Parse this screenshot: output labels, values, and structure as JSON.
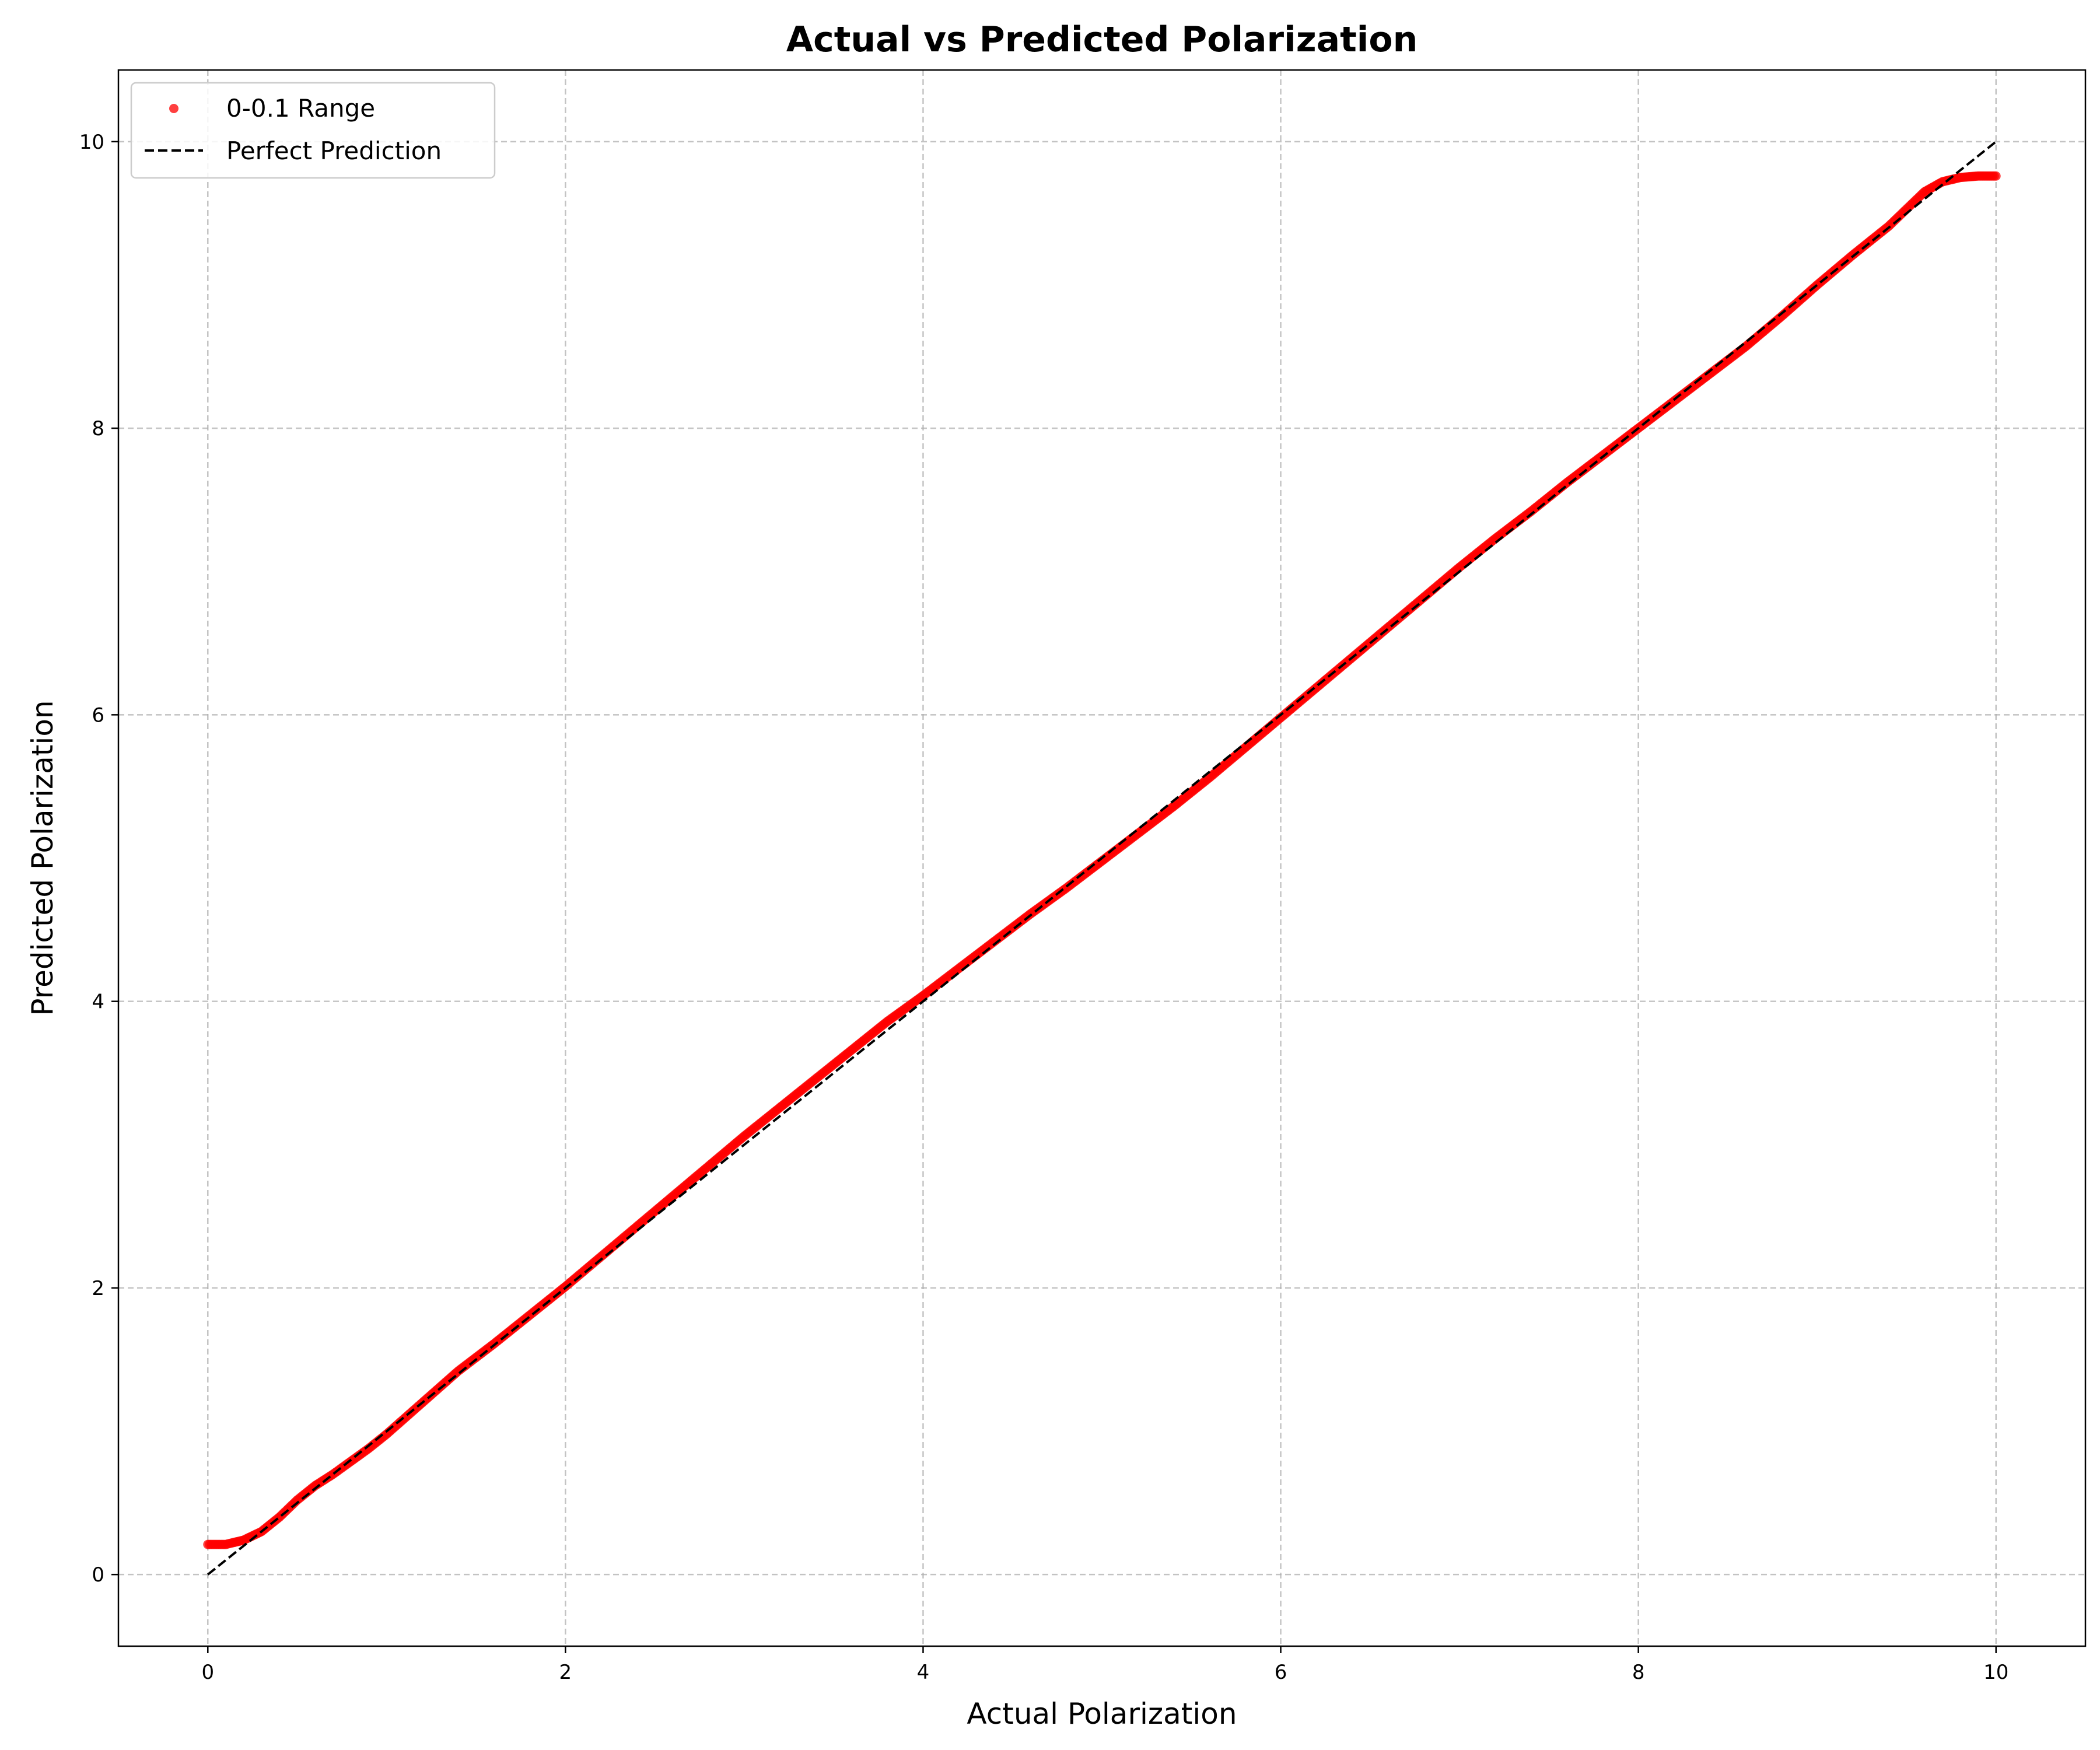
{
  "chart_data": {
    "type": "scatter",
    "title": "Actual vs Predicted Polarization",
    "xlabel": "Actual Polarization",
    "ylabel": "Predicted Polarization",
    "xlim": [
      -0.5,
      10.5
    ],
    "ylim": [
      -0.5,
      10.5
    ],
    "xticks": [
      0,
      2,
      4,
      6,
      8,
      10
    ],
    "yticks": [
      0,
      2,
      4,
      6,
      8,
      10
    ],
    "grid": true,
    "legend_position": "upper-left",
    "series": [
      {
        "name": "0-0.1 Range",
        "kind": "scatter",
        "color": "#ff0000",
        "x": [
          0.0,
          0.1,
          0.2,
          0.3,
          0.4,
          0.5,
          0.6,
          0.7,
          0.8,
          0.9,
          1.0,
          1.2,
          1.4,
          1.6,
          1.8,
          2.0,
          2.2,
          2.4,
          2.6,
          2.8,
          3.0,
          3.2,
          3.4,
          3.6,
          3.8,
          4.0,
          4.2,
          4.4,
          4.6,
          4.8,
          5.0,
          5.2,
          5.4,
          5.6,
          5.8,
          6.0,
          6.2,
          6.4,
          6.6,
          6.8,
          7.0,
          7.2,
          7.4,
          7.6,
          7.8,
          8.0,
          8.2,
          8.4,
          8.6,
          8.8,
          9.0,
          9.2,
          9.4,
          9.5,
          9.6,
          9.7,
          9.8,
          9.9,
          10.0
        ],
        "y": [
          0.21,
          0.21,
          0.24,
          0.3,
          0.4,
          0.52,
          0.62,
          0.7,
          0.79,
          0.88,
          0.98,
          1.2,
          1.42,
          1.61,
          1.81,
          2.01,
          2.22,
          2.43,
          2.64,
          2.85,
          3.06,
          3.26,
          3.46,
          3.66,
          3.86,
          4.04,
          4.23,
          4.42,
          4.61,
          4.79,
          4.98,
          5.17,
          5.36,
          5.56,
          5.77,
          5.98,
          6.19,
          6.4,
          6.61,
          6.82,
          7.03,
          7.23,
          7.42,
          7.62,
          7.81,
          8.0,
          8.19,
          8.38,
          8.57,
          8.78,
          9.0,
          9.21,
          9.41,
          9.53,
          9.65,
          9.72,
          9.75,
          9.76,
          9.76
        ]
      },
      {
        "name": "Perfect Prediction",
        "kind": "line",
        "style": "dashed",
        "color": "#000000",
        "x": [
          0,
          10
        ],
        "y": [
          0,
          10
        ]
      }
    ]
  }
}
